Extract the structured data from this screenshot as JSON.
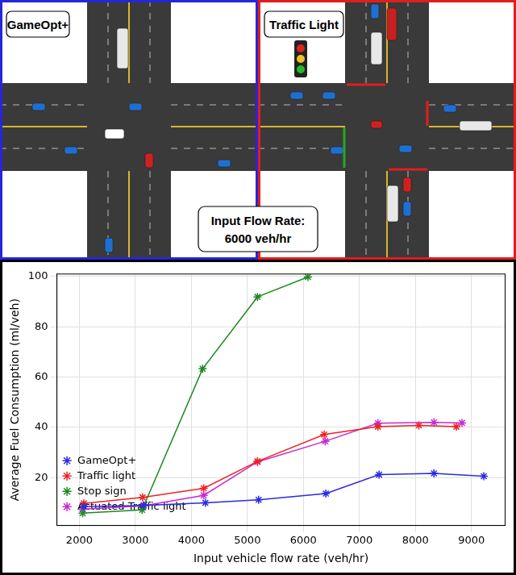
{
  "header": {
    "panels": [
      {
        "label": "GameOpt+",
        "color": "#2626d9"
      },
      {
        "label": "Traffic Light",
        "color": "#e01e1e"
      }
    ],
    "annotation": [
      "Input Flow Rate:",
      "6000 veh/hr"
    ]
  },
  "chart_data": {
    "type": "line",
    "x_label": "Input vehicle flow rate (veh/hr)",
    "y_label": "Average Fuel Consumption (ml/veh)",
    "xlim": [
      1600,
      9600
    ],
    "xticks": [
      2000,
      3000,
      4000,
      5000,
      6000,
      7000,
      8000,
      9000
    ],
    "ylim": [
      1,
      101
    ],
    "yticks": [
      20,
      40,
      60,
      80,
      100
    ],
    "grid": true,
    "legend": "upper right",
    "series": [
      {
        "name": "GameOpt+",
        "color": "#2a2ae6",
        "marker": "star",
        "x": [
          2080,
          3150,
          4250,
          5200,
          6400,
          7350,
          8330,
          9220
        ],
        "values": [
          8.5,
          9,
          10,
          11.2,
          13.7,
          21.2,
          21.7,
          20.6
        ]
      },
      {
        "name": "Traffic light",
        "color": "#ee2222",
        "marker": "star",
        "x": [
          2080,
          3130,
          4220,
          5180,
          6370,
          7330,
          8060,
          8730
        ],
        "values": [
          9.8,
          12.2,
          15.8,
          26.5,
          37.2,
          40.3,
          40.8,
          40.3
        ]
      },
      {
        "name": "Stop sign",
        "color": "#1f8a1f",
        "marker": "star",
        "x": [
          2060,
          3120,
          4200,
          5180,
          6080
        ],
        "values": [
          5.9,
          7.2,
          63.3,
          91.9,
          99.8
        ]
      },
      {
        "name": "Actuated Traffic light",
        "color": "#c82ad2",
        "marker": "star",
        "x": [
          2060,
          3140,
          4220,
          5180,
          6390,
          7330,
          8330,
          8830
        ],
        "values": [
          7.5,
          8.8,
          13,
          26.3,
          34.5,
          41.7,
          42,
          41.8
        ]
      }
    ]
  }
}
